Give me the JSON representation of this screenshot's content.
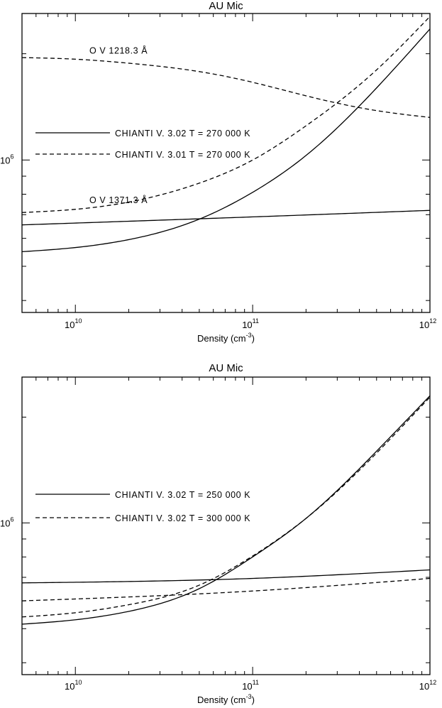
{
  "chart_data": [
    {
      "type": "line",
      "title": "AU Mic",
      "xlabel": "Density (cm",
      "xlabel_sup": "-3",
      "xlabel_close": ")",
      "x_scale": "log",
      "y_scale": "log",
      "xlim": [
        5000000000.0,
        1000000000000.0
      ],
      "ylim": [
        370000.0,
        2600000.0
      ],
      "x_ticks": [
        {
          "value": 10000000000.0,
          "base": "10",
          "exp": "10"
        },
        {
          "value": 100000000000.0,
          "base": "10",
          "exp": "11"
        },
        {
          "value": 1000000000000.0,
          "base": "10",
          "exp": "12"
        }
      ],
      "y_ticks": [
        {
          "value": 1000000.0,
          "base": "10",
          "exp": "6"
        }
      ],
      "legend": [
        {
          "label": "CHIANTI V. 3.02   T = 270 000 K",
          "style": "solid"
        },
        {
          "label": "CHIANTI V. 3.01   T = 270 000 K",
          "style": "dashed"
        }
      ],
      "annotations": [
        {
          "text": "O V 1218.3 Å",
          "x": 12000000000.0,
          "y": 2000000.0
        },
        {
          "text": "O V 1371.3 Å",
          "x": 12000000000.0,
          "y": 755000.0
        }
      ],
      "series": [
        {
          "style": "dashed",
          "x": [
            5000000000.0,
            10000000000.0,
            20000000000.0,
            50000000000.0,
            100000000000.0,
            200000000000.0,
            500000000000.0,
            1000000000000.0
          ],
          "y": [
            1950000.0,
            1930000.0,
            1880000.0,
            1780000.0,
            1660000.0,
            1520000.0,
            1380000.0,
            1320000.0
          ]
        },
        {
          "style": "dashed",
          "x": [
            5000000000.0,
            10000000000.0,
            20000000000.0,
            50000000000.0,
            100000000000.0,
            200000000000.0,
            500000000000.0,
            1000000000000.0
          ],
          "y": [
            710000.0,
            725000.0,
            760000.0,
            860000.0,
            1000000.0,
            1250000.0,
            1800000.0,
            2550000.0
          ]
        },
        {
          "style": "solid",
          "x": [
            5000000000.0,
            10000000000.0,
            20000000000.0,
            50000000000.0,
            100000000000.0,
            200000000000.0,
            500000000000.0,
            1000000000000.0
          ],
          "y": [
            550000.0,
            565000.0,
            595000.0,
            680000.0,
            810000.0,
            1030000.0,
            1600000.0,
            2350000.0
          ]
        },
        {
          "style": "solid",
          "x": [
            5000000000.0,
            100000000000.0,
            1000000000000.0
          ],
          "y": [
            655000.0,
            690000.0,
            720000.0
          ]
        }
      ]
    },
    {
      "type": "line",
      "title": "AU Mic",
      "xlabel": "Density (cm",
      "xlabel_sup": "-3",
      "xlabel_close": ")",
      "x_scale": "log",
      "y_scale": "log",
      "xlim": [
        5000000000.0,
        1000000000000.0
      ],
      "ylim": [
        370000.0,
        2600000.0
      ],
      "x_ticks": [
        {
          "value": 10000000000.0,
          "base": "10",
          "exp": "10"
        },
        {
          "value": 100000000000.0,
          "base": "10",
          "exp": "11"
        },
        {
          "value": 1000000000000.0,
          "base": "10",
          "exp": "12"
        }
      ],
      "y_ticks": [
        {
          "value": 1000000.0,
          "base": "10",
          "exp": "6"
        }
      ],
      "legend": [
        {
          "label": "CHIANTI V. 3.02   T = 250 000 K",
          "style": "solid"
        },
        {
          "label": "CHIANTI V. 3.02   T = 300 000 K",
          "style": "dashed"
        }
      ],
      "annotations": [],
      "series": [
        {
          "style": "solid",
          "x": [
            5000000000.0,
            10000000000.0,
            20000000000.0,
            50000000000.0,
            100000000000.0,
            200000000000.0,
            500000000000.0,
            1000000000000.0
          ],
          "y": [
            515000.0,
            530000.0,
            560000.0,
            650000.0,
            800000.0,
            1030000.0,
            1600000.0,
            2300000.0
          ]
        },
        {
          "style": "dashed",
          "x": [
            5000000000.0,
            10000000000.0,
            20000000000.0,
            50000000000.0,
            100000000000.0,
            200000000000.0,
            500000000000.0,
            1000000000000.0
          ],
          "y": [
            540000.0,
            555000.0,
            585000.0,
            665000.0,
            805000.0,
            1030000.0,
            1580000.0,
            2280000.0
          ]
        },
        {
          "style": "solid",
          "x": [
            5000000000.0,
            100000000000.0,
            1000000000000.0
          ],
          "y": [
            675000.0,
            695000.0,
            735000.0
          ]
        },
        {
          "style": "dashed",
          "x": [
            5000000000.0,
            100000000000.0,
            1000000000000.0
          ],
          "y": [
            600000.0,
            640000.0,
            695000.0
          ]
        }
      ]
    }
  ]
}
